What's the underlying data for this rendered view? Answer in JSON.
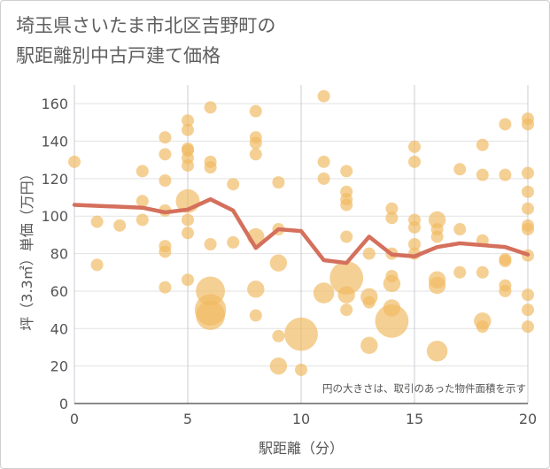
{
  "title_lines": [
    "埼玉県さいたま市北区吉野町の",
    "駅距離別中古戸建て価格"
  ],
  "chart_data": {
    "type": "scatter",
    "xlabel": "駅距離（分）",
    "ylabel": "坪（3.3㎡）単価（万円）",
    "xlim": [
      0,
      20
    ],
    "ylim": [
      0,
      170
    ],
    "xticks": [
      0,
      5,
      10,
      15,
      20
    ],
    "yticks": [
      0,
      20,
      40,
      60,
      80,
      100,
      120,
      140,
      160
    ],
    "grid": true,
    "annotation": "円の大きさは、取引のあった物件面積を示す",
    "colors": {
      "bubble": "#f0b962",
      "line": "#d4705c"
    },
    "points": [
      {
        "x": 0,
        "y": 129,
        "s": 1
      },
      {
        "x": 1,
        "y": 97,
        "s": 1
      },
      {
        "x": 1,
        "y": 74,
        "s": 1
      },
      {
        "x": 2,
        "y": 95,
        "s": 1
      },
      {
        "x": 3,
        "y": 124,
        "s": 1
      },
      {
        "x": 3,
        "y": 108,
        "s": 1
      },
      {
        "x": 3,
        "y": 98,
        "s": 1
      },
      {
        "x": 4,
        "y": 142,
        "s": 1
      },
      {
        "x": 4,
        "y": 133,
        "s": 1
      },
      {
        "x": 4,
        "y": 119,
        "s": 1
      },
      {
        "x": 4,
        "y": 103,
        "s": 1
      },
      {
        "x": 4,
        "y": 84,
        "s": 1
      },
      {
        "x": 4,
        "y": 81,
        "s": 1
      },
      {
        "x": 4,
        "y": 62,
        "s": 1
      },
      {
        "x": 5,
        "y": 151,
        "s": 1
      },
      {
        "x": 5,
        "y": 146,
        "s": 1
      },
      {
        "x": 5,
        "y": 136,
        "s": 1
      },
      {
        "x": 5,
        "y": 135,
        "s": 1
      },
      {
        "x": 5,
        "y": 131,
        "s": 1
      },
      {
        "x": 5,
        "y": 127,
        "s": 1
      },
      {
        "x": 5,
        "y": 108,
        "s": 4
      },
      {
        "x": 5,
        "y": 98,
        "s": 1
      },
      {
        "x": 5,
        "y": 91,
        "s": 1
      },
      {
        "x": 5,
        "y": 66,
        "s": 1
      },
      {
        "x": 6,
        "y": 158,
        "s": 1
      },
      {
        "x": 6,
        "y": 129,
        "s": 1
      },
      {
        "x": 6,
        "y": 126,
        "s": 1
      },
      {
        "x": 6,
        "y": 85,
        "s": 1
      },
      {
        "x": 6,
        "y": 60,
        "s": 6
      },
      {
        "x": 6,
        "y": 50,
        "s": 7
      },
      {
        "x": 6,
        "y": 47,
        "s": 6
      },
      {
        "x": 7,
        "y": 117,
        "s": 1
      },
      {
        "x": 7,
        "y": 86,
        "s": 1
      },
      {
        "x": 8,
        "y": 156,
        "s": 1
      },
      {
        "x": 8,
        "y": 142,
        "s": 1
      },
      {
        "x": 8,
        "y": 139,
        "s": 1
      },
      {
        "x": 8,
        "y": 133,
        "s": 1
      },
      {
        "x": 8,
        "y": 89,
        "s": 2
      },
      {
        "x": 8,
        "y": 61,
        "s": 2
      },
      {
        "x": 8,
        "y": 47,
        "s": 1
      },
      {
        "x": 9,
        "y": 118,
        "s": 1
      },
      {
        "x": 9,
        "y": 93,
        "s": 1
      },
      {
        "x": 9,
        "y": 75,
        "s": 2
      },
      {
        "x": 9,
        "y": 36,
        "s": 1
      },
      {
        "x": 9,
        "y": 20,
        "s": 2
      },
      {
        "x": 10,
        "y": 37,
        "s": 8
      },
      {
        "x": 10,
        "y": 18,
        "s": 1
      },
      {
        "x": 11,
        "y": 164,
        "s": 1
      },
      {
        "x": 11,
        "y": 129,
        "s": 1
      },
      {
        "x": 11,
        "y": 120,
        "s": 1
      },
      {
        "x": 11,
        "y": 59,
        "s": 3
      },
      {
        "x": 12,
        "y": 124,
        "s": 1
      },
      {
        "x": 12,
        "y": 113,
        "s": 1
      },
      {
        "x": 12,
        "y": 109,
        "s": 1
      },
      {
        "x": 12,
        "y": 106,
        "s": 1
      },
      {
        "x": 12,
        "y": 89,
        "s": 1
      },
      {
        "x": 12,
        "y": 67,
        "s": 8
      },
      {
        "x": 12,
        "y": 58,
        "s": 2
      },
      {
        "x": 12,
        "y": 50,
        "s": 1
      },
      {
        "x": 13,
        "y": 80,
        "s": 1
      },
      {
        "x": 13,
        "y": 57,
        "s": 2
      },
      {
        "x": 13,
        "y": 54,
        "s": 1
      },
      {
        "x": 13,
        "y": 31,
        "s": 2
      },
      {
        "x": 14,
        "y": 104,
        "s": 1
      },
      {
        "x": 14,
        "y": 99,
        "s": 1
      },
      {
        "x": 14,
        "y": 80,
        "s": 1
      },
      {
        "x": 14,
        "y": 68,
        "s": 1
      },
      {
        "x": 14,
        "y": 64,
        "s": 2
      },
      {
        "x": 14,
        "y": 51,
        "s": 2
      },
      {
        "x": 14,
        "y": 44,
        "s": 8
      },
      {
        "x": 15,
        "y": 137,
        "s": 1
      },
      {
        "x": 15,
        "y": 129,
        "s": 1
      },
      {
        "x": 15,
        "y": 98,
        "s": 1
      },
      {
        "x": 15,
        "y": 94,
        "s": 1
      },
      {
        "x": 15,
        "y": 85,
        "s": 1
      },
      {
        "x": 15,
        "y": 80,
        "s": 1
      },
      {
        "x": 16,
        "y": 98,
        "s": 2
      },
      {
        "x": 16,
        "y": 93,
        "s": 1
      },
      {
        "x": 16,
        "y": 89,
        "s": 1
      },
      {
        "x": 16,
        "y": 66,
        "s": 2
      },
      {
        "x": 16,
        "y": 63,
        "s": 2
      },
      {
        "x": 16,
        "y": 28,
        "s": 3
      },
      {
        "x": 17,
        "y": 125,
        "s": 1
      },
      {
        "x": 17,
        "y": 93,
        "s": 1
      },
      {
        "x": 17,
        "y": 70,
        "s": 1
      },
      {
        "x": 18,
        "y": 138,
        "s": 1
      },
      {
        "x": 18,
        "y": 122,
        "s": 1
      },
      {
        "x": 18,
        "y": 87,
        "s": 1
      },
      {
        "x": 18,
        "y": 70,
        "s": 1
      },
      {
        "x": 18,
        "y": 44,
        "s": 2
      },
      {
        "x": 18,
        "y": 41,
        "s": 1
      },
      {
        "x": 19,
        "y": 149,
        "s": 1
      },
      {
        "x": 19,
        "y": 122,
        "s": 1
      },
      {
        "x": 19,
        "y": 77,
        "s": 1
      },
      {
        "x": 19,
        "y": 76,
        "s": 1
      },
      {
        "x": 19,
        "y": 63,
        "s": 1
      },
      {
        "x": 19,
        "y": 60,
        "s": 1
      },
      {
        "x": 20,
        "y": 152,
        "s": 1
      },
      {
        "x": 20,
        "y": 149,
        "s": 1
      },
      {
        "x": 20,
        "y": 123,
        "s": 1
      },
      {
        "x": 20,
        "y": 113,
        "s": 1
      },
      {
        "x": 20,
        "y": 104,
        "s": 1
      },
      {
        "x": 20,
        "y": 95,
        "s": 1
      },
      {
        "x": 20,
        "y": 93,
        "s": 1
      },
      {
        "x": 20,
        "y": 79,
        "s": 1
      },
      {
        "x": 20,
        "y": 58,
        "s": 1
      },
      {
        "x": 20,
        "y": 50,
        "s": 1
      },
      {
        "x": 20,
        "y": 41,
        "s": 1
      }
    ],
    "line": {
      "x": [
        0,
        1,
        2,
        3,
        4,
        5,
        6,
        7,
        8,
        9,
        10,
        11,
        12,
        13,
        14,
        15,
        16,
        17,
        18,
        19,
        20
      ],
      "y": [
        106,
        105.5,
        105,
        104.5,
        102,
        103.5,
        109,
        103,
        83,
        93,
        92,
        76.5,
        75,
        89,
        79.5,
        78.5,
        83.5,
        85.5,
        84.5,
        83.5,
        79.5
      ]
    }
  }
}
